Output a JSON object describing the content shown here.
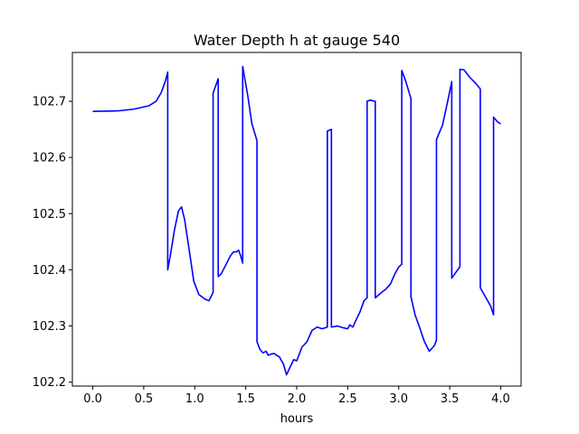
{
  "chart_data": {
    "type": "line",
    "title": "Water Depth h at gauge 540",
    "xlabel": "hours",
    "ylabel": "",
    "xlim": [
      -0.2,
      4.2
    ],
    "ylim": [
      102.193,
      102.787
    ],
    "xticks": [
      0.0,
      0.5,
      1.0,
      1.5,
      2.0,
      2.5,
      3.0,
      3.5,
      4.0
    ],
    "xtick_labels": [
      "0.0",
      "0.5",
      "1.0",
      "1.5",
      "2.0",
      "2.5",
      "3.0",
      "3.5",
      "4.0"
    ],
    "yticks": [
      102.2,
      102.3,
      102.4,
      102.5,
      102.6,
      102.7
    ],
    "ytick_labels": [
      "102.2",
      "102.3",
      "102.4",
      "102.5",
      "102.6",
      "102.7"
    ],
    "grid": false,
    "series": [
      {
        "color": "#0000ff",
        "x": [
          0.0,
          0.25,
          0.4,
          0.55,
          0.62,
          0.67,
          0.71,
          0.735,
          0.735,
          0.76,
          0.8,
          0.84,
          0.87,
          0.9,
          0.95,
          0.99,
          1.04,
          1.1,
          1.14,
          1.18,
          1.18,
          1.23,
          1.23,
          1.26,
          1.3,
          1.35,
          1.38,
          1.41,
          1.43,
          1.45,
          1.47,
          1.47,
          1.52,
          1.56,
          1.61,
          1.61,
          1.64,
          1.67,
          1.7,
          1.72,
          1.75,
          1.78,
          1.8,
          1.83,
          1.87,
          1.9,
          1.93,
          1.97,
          2.0,
          2.05,
          2.1,
          2.15,
          2.2,
          2.25,
          2.3,
          2.3,
          2.34,
          2.34,
          2.4,
          2.45,
          2.5,
          2.52,
          2.55,
          2.58,
          2.62,
          2.66,
          2.69,
          2.69,
          2.72,
          2.77,
          2.77,
          2.82,
          2.87,
          2.92,
          2.96,
          3.0,
          3.03,
          3.03,
          3.07,
          3.12,
          3.12,
          3.16,
          3.2,
          3.25,
          3.3,
          3.35,
          3.37,
          3.37,
          3.43,
          3.48,
          3.52,
          3.52,
          3.57,
          3.6,
          3.6,
          3.64,
          3.7,
          3.75,
          3.8,
          3.8,
          3.85,
          3.9,
          3.93,
          3.93,
          3.97,
          4.0
        ],
        "y": [
          102.682,
          102.683,
          102.686,
          102.692,
          102.7,
          102.715,
          102.735,
          102.752,
          102.4,
          102.425,
          102.47,
          102.505,
          102.512,
          102.49,
          102.43,
          102.38,
          102.356,
          102.348,
          102.345,
          102.36,
          102.715,
          102.74,
          102.388,
          102.393,
          102.407,
          102.425,
          102.432,
          102.432,
          102.435,
          102.425,
          102.412,
          102.762,
          102.71,
          102.66,
          102.63,
          102.272,
          102.258,
          102.252,
          102.255,
          102.248,
          102.25,
          102.251,
          102.248,
          102.245,
          102.232,
          102.213,
          102.225,
          102.24,
          102.238,
          102.262,
          102.272,
          102.292,
          102.298,
          102.295,
          102.298,
          102.647,
          102.65,
          102.298,
          102.3,
          102.297,
          102.295,
          102.302,
          102.298,
          102.31,
          102.325,
          102.345,
          102.35,
          102.7,
          102.702,
          102.7,
          102.35,
          102.358,
          102.365,
          102.375,
          102.392,
          102.405,
          102.41,
          102.755,
          102.735,
          102.705,
          102.352,
          102.32,
          102.3,
          102.273,
          102.255,
          102.265,
          102.275,
          102.632,
          102.658,
          102.7,
          102.735,
          102.385,
          102.398,
          102.405,
          102.757,
          102.756,
          102.742,
          102.733,
          102.722,
          102.368,
          102.352,
          102.336,
          102.32,
          102.672,
          102.663,
          102.66
        ]
      }
    ]
  }
}
